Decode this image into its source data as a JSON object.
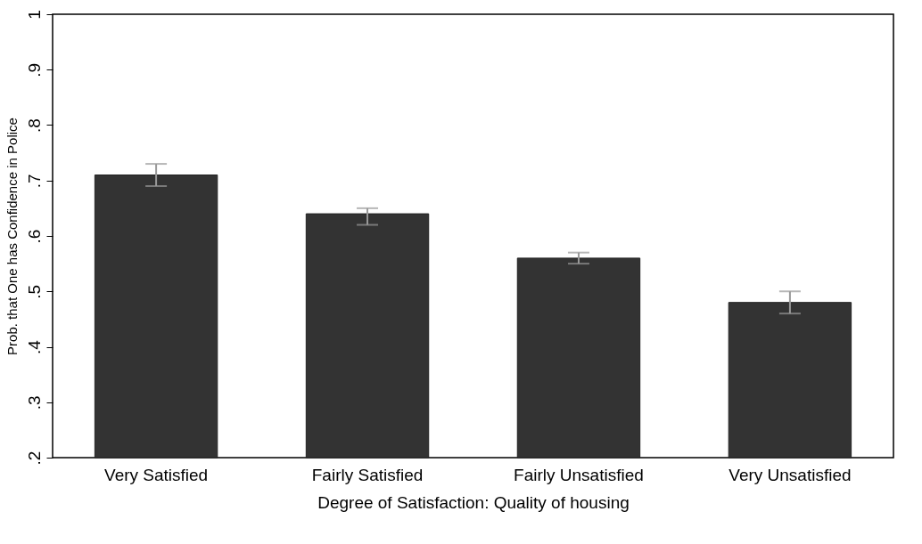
{
  "chart_data": {
    "type": "bar",
    "xlabel": "Degree of Satisfaction: Quality of housing",
    "ylabel": "Prob. that One has Confidence in Police",
    "categories": [
      "Very Satisfied",
      "Fairly Satisfied",
      "Fairly Unsatisfied",
      "Very Unsatisfied"
    ],
    "values": [
      0.71,
      0.64,
      0.56,
      0.48
    ],
    "color": "#333333",
    "errors": [
      [
        0.69,
        0.73
      ],
      [
        0.62,
        0.65
      ],
      [
        0.55,
        0.57
      ],
      [
        0.46,
        0.5
      ]
    ],
    "ylim": [
      0.2,
      1
    ],
    "yticks": [
      {
        "value": 0.2,
        "label": ".2"
      },
      {
        "value": 0.3,
        "label": ".3"
      },
      {
        "value": 0.4,
        "label": ".4"
      },
      {
        "value": 0.5,
        "label": ".5"
      },
      {
        "value": 0.6,
        "label": ".6"
      },
      {
        "value": 0.7,
        "label": ".7"
      },
      {
        "value": 0.8,
        "label": ".8"
      },
      {
        "value": 0.9,
        "label": ".9"
      },
      1
    ],
    "grid": false
  }
}
